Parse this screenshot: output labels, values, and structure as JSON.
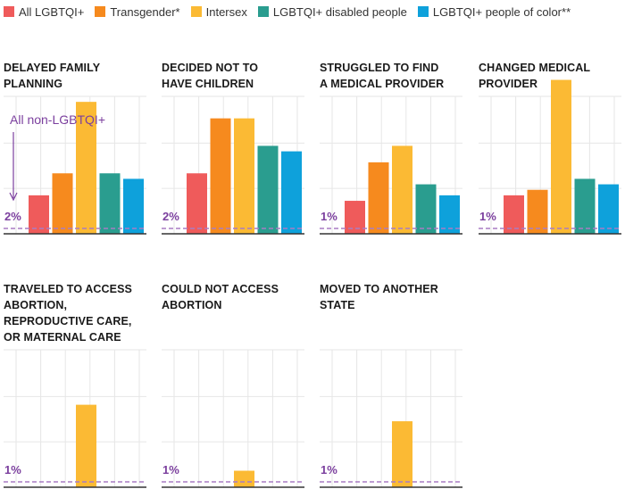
{
  "legend": [
    {
      "name": "All LGBTQI+",
      "color": "#ef5b5b"
    },
    {
      "name": "Transgender*",
      "color": "#f68a1e"
    },
    {
      "name": "Intersex",
      "color": "#fbba34"
    },
    {
      "name": "LGBTQI+ disabled people",
      "color": "#2a9d8f"
    },
    {
      "name": "LGBTQI+ people of color**",
      "color": "#0ea1db"
    }
  ],
  "colors": {
    "baseline": "#a87cc4",
    "accent_text": "#7b3f9e",
    "grid": "#e6e6e6",
    "axis": "#333333"
  },
  "annotation": {
    "text": "All non-LGBTQI+"
  },
  "chart_data": [
    {
      "type": "bar",
      "title_lines": [
        "DELAYED FAMILY",
        "PLANNING"
      ],
      "baseline_label": "2%",
      "baseline": 2,
      "ylim": [
        0,
        25
      ],
      "series": [
        {
          "name": "All LGBTQI+",
          "value": 7
        },
        {
          "name": "Transgender*",
          "value": 11
        },
        {
          "name": "Intersex",
          "value": 24
        },
        {
          "name": "LGBTQI+ disabled people",
          "value": 11
        },
        {
          "name": "LGBTQI+ people of color**",
          "value": 10
        }
      ]
    },
    {
      "type": "bar",
      "title_lines": [
        "DECIDED NOT TO",
        "HAVE CHILDREN"
      ],
      "baseline_label": "2%",
      "baseline": 2,
      "ylim": [
        0,
        25
      ],
      "series": [
        {
          "name": "All LGBTQI+",
          "value": 11
        },
        {
          "name": "Transgender*",
          "value": 21
        },
        {
          "name": "Intersex",
          "value": 21
        },
        {
          "name": "LGBTQI+ disabled people",
          "value": 16
        },
        {
          "name": "LGBTQI+ people of color**",
          "value": 15
        }
      ]
    },
    {
      "type": "bar",
      "title_lines": [
        "STRUGGLED TO FIND",
        "A MEDICAL PROVIDER"
      ],
      "baseline_label": "1%",
      "baseline": 1,
      "ylim": [
        0,
        25
      ],
      "series": [
        {
          "name": "All LGBTQI+",
          "value": 6
        },
        {
          "name": "Transgender*",
          "value": 13
        },
        {
          "name": "Intersex",
          "value": 16
        },
        {
          "name": "LGBTQI+ disabled people",
          "value": 9
        },
        {
          "name": "LGBTQI+ people of color**",
          "value": 7
        }
      ]
    },
    {
      "type": "bar",
      "title_lines": [
        "CHANGED MEDICAL",
        "PROVIDER"
      ],
      "baseline_label": "1%",
      "baseline": 1,
      "ylim": [
        0,
        25
      ],
      "series": [
        {
          "name": "All LGBTQI+",
          "value": 7
        },
        {
          "name": "Transgender*",
          "value": 8
        },
        {
          "name": "Intersex",
          "value": 28
        },
        {
          "name": "LGBTQI+ disabled people",
          "value": 10
        },
        {
          "name": "LGBTQI+ people of color**",
          "value": 9
        }
      ]
    },
    {
      "type": "bar",
      "title_lines": [
        "TRAVELED TO ACCESS",
        "ABORTION,",
        "REPRODUCTIVE CARE,",
        "OR MATERNAL CARE"
      ],
      "baseline_label": "1%",
      "baseline": 1,
      "ylim": [
        0,
        25
      ],
      "series": [
        {
          "name": "Intersex",
          "value": 15
        }
      ]
    },
    {
      "type": "bar",
      "title_lines": [
        "COULD NOT ACCESS",
        "ABORTION"
      ],
      "baseline_label": "1%",
      "baseline": 1,
      "ylim": [
        0,
        25
      ],
      "series": [
        {
          "name": "Intersex",
          "value": 3
        }
      ]
    },
    {
      "type": "bar",
      "title_lines": [
        "MOVED TO ANOTHER",
        "STATE"
      ],
      "baseline_label": "1%",
      "baseline": 1,
      "ylim": [
        0,
        25
      ],
      "series": [
        {
          "name": "Intersex",
          "value": 12
        }
      ]
    }
  ]
}
